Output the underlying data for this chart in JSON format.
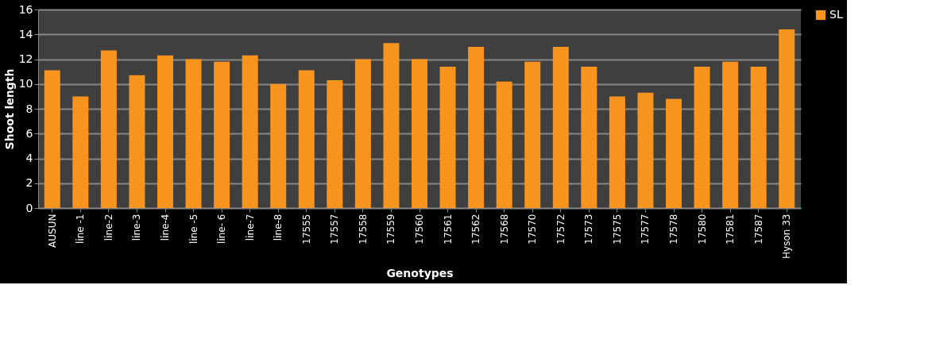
{
  "chart_data": {
    "type": "bar",
    "xlabel": "Genotypes",
    "ylabel": "Shoot length",
    "categories": [
      "AUSUN",
      "line -1",
      "line-2",
      "line-3",
      "line-4",
      "line -5",
      "line- 6",
      "line-7",
      "line-8",
      "17555",
      "17557",
      "17558",
      "17559",
      "17560",
      "17561",
      "17562",
      "17568",
      "17570",
      "17572",
      "17573",
      "17575",
      "17577",
      "17578",
      "17580",
      "17581",
      "17587",
      "Hyson 33"
    ],
    "series": [
      {
        "name": "SL",
        "color": "#f7941d",
        "values": [
          11.1,
          9.0,
          12.7,
          10.7,
          12.3,
          12.0,
          11.8,
          12.3,
          10.0,
          11.1,
          10.3,
          12.0,
          13.3,
          12.0,
          11.4,
          13.0,
          10.2,
          11.8,
          13.0,
          11.4,
          9.0,
          9.3,
          8.8,
          11.4,
          11.8,
          11.4,
          14.4
        ]
      }
    ],
    "ylim": [
      0,
      16
    ],
    "yticks": [
      0,
      2,
      4,
      6,
      8,
      10,
      12,
      14,
      16
    ],
    "grid": "y",
    "legend": "right"
  }
}
